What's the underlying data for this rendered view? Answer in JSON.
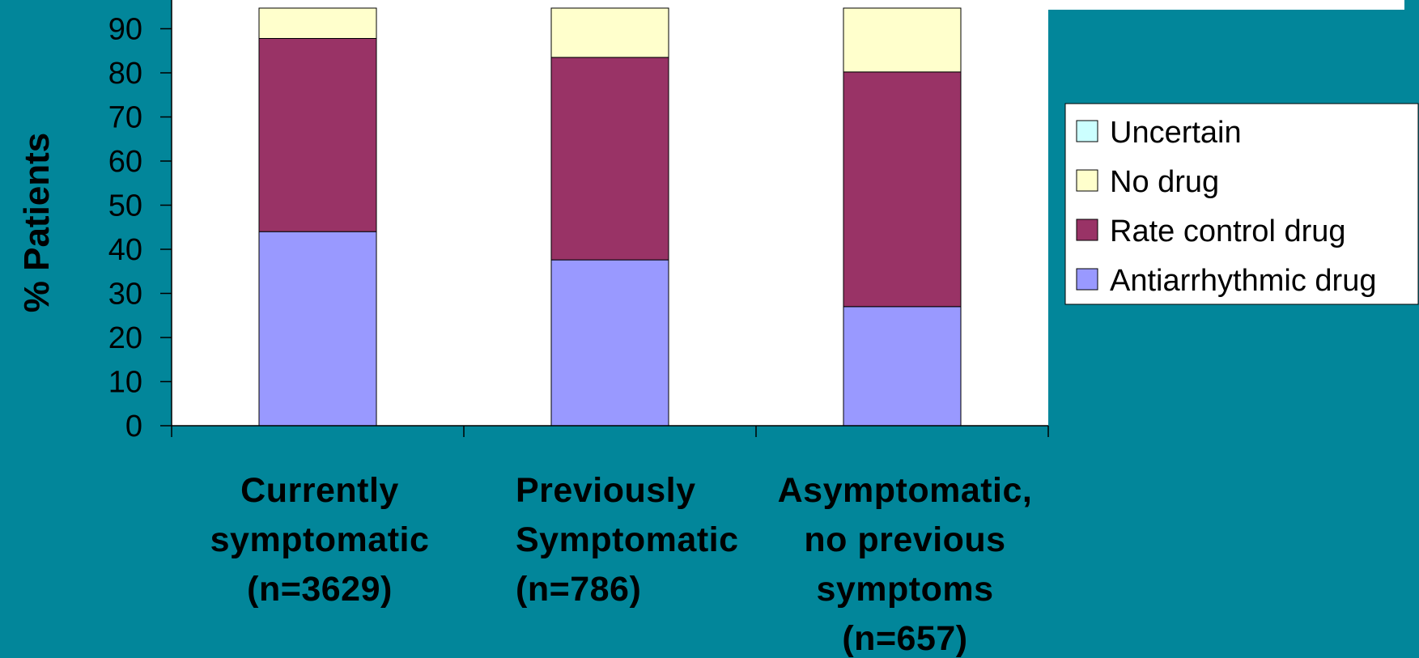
{
  "chart_data": {
    "type": "bar",
    "stacked": true,
    "ylabel": "% Patients",
    "ylim": [
      0,
      100
    ],
    "yticks": [
      0,
      10,
      20,
      30,
      40,
      50,
      60,
      70,
      80,
      90
    ],
    "categories": [
      [
        "Currently",
        "symptomatic",
        "(n=3629)"
      ],
      [
        "Previously",
        "Symptomatic",
        "(n=786)"
      ],
      [
        "Asymptomatic,",
        "no previous",
        "symptoms",
        "(n=657)"
      ]
    ],
    "series": [
      {
        "name": "Antiarrhythmic drug",
        "color": "#9999ff",
        "values": [
          44,
          37.6,
          27
        ]
      },
      {
        "name": "Rate control drug",
        "color": "#993366",
        "values": [
          43.8,
          45.9,
          53.2
        ]
      },
      {
        "name": "No drug",
        "color": "#ffffcc",
        "values": [
          12.2,
          16.5,
          19.8
        ]
      },
      {
        "name": "Uncertain",
        "color": "#ccffff",
        "values": [
          0,
          0,
          0
        ]
      }
    ],
    "legend": {
      "position": "right",
      "items": [
        "Uncertain",
        "No drug",
        "Rate control drug",
        "Antiarrhythmic drug"
      ]
    },
    "grid": false
  }
}
